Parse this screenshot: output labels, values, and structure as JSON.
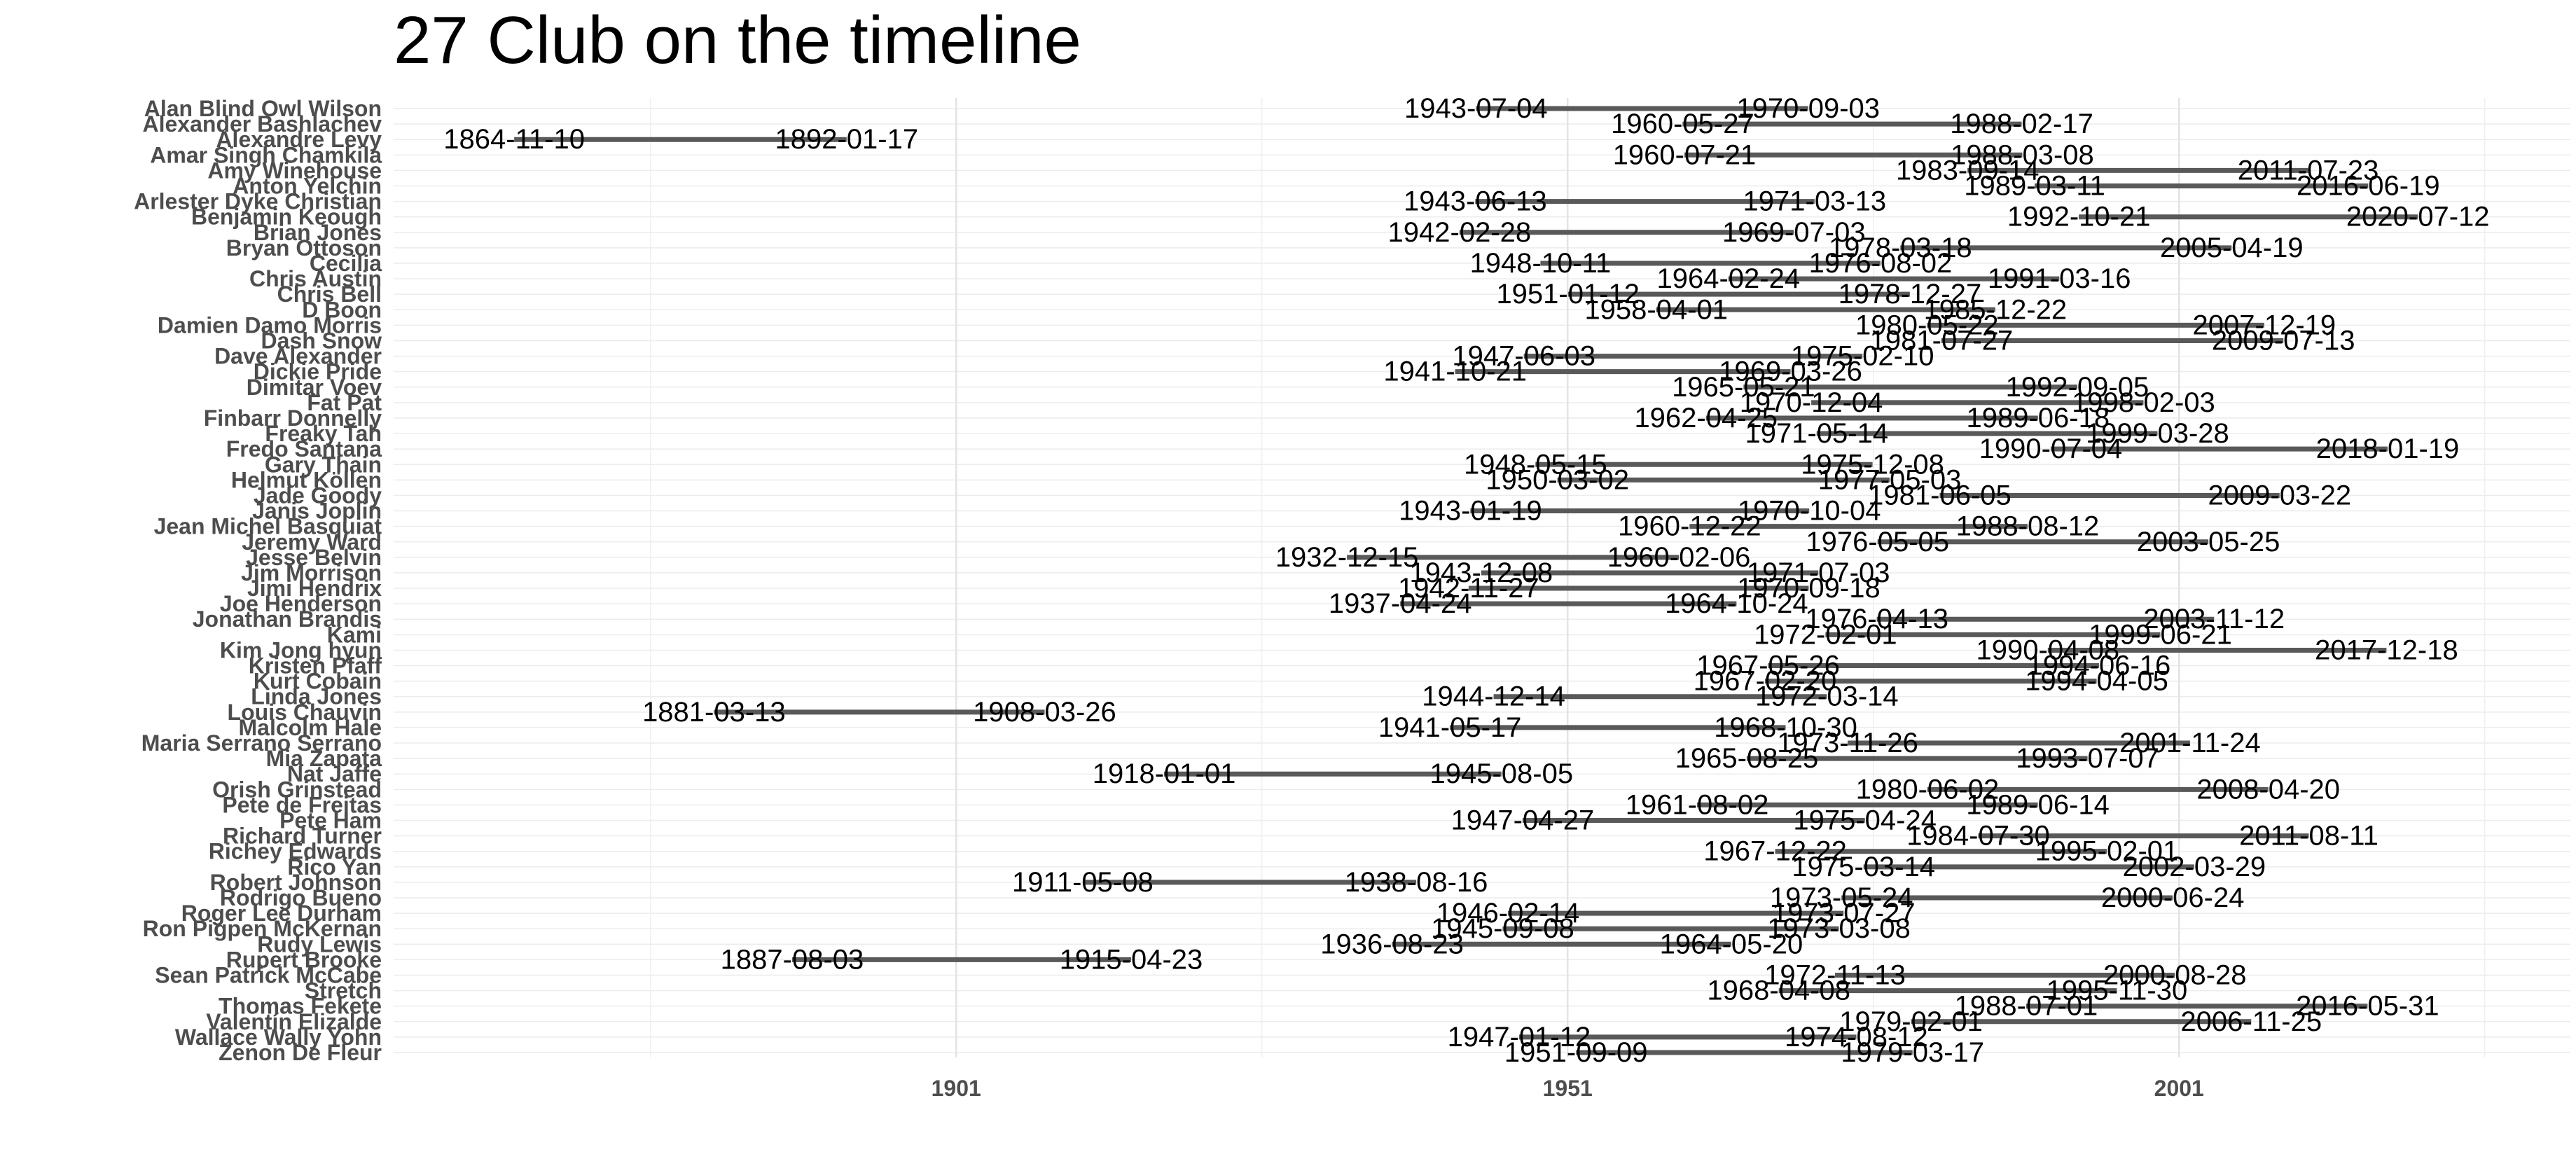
{
  "chart_data": {
    "type": "bar",
    "title": "27 Club on the timeline",
    "xlabel": "",
    "ylabel": "",
    "x_ticks": [
      "1901",
      "1951",
      "2001"
    ],
    "x_tick_values": [
      1901,
      1951,
      2001
    ],
    "xlim": [
      1855,
      2033
    ],
    "grid": true,
    "legend": "none",
    "segment_color": "#595959",
    "rows": [
      {
        "name": "Alan  Blind Owl  Wilson",
        "start": "1943-07-04",
        "end": "1970-09-03"
      },
      {
        "name": "Alexander Bashlachev",
        "start": "1960-05-27",
        "end": "1988-02-17"
      },
      {
        "name": "Alexandre Levy",
        "start": "1864-11-10",
        "end": "1892-01-17"
      },
      {
        "name": "Amar Singh Chamkila",
        "start": "1960-07-21",
        "end": "1988-03-08"
      },
      {
        "name": "Amy Winehouse",
        "start": "1983-09-14",
        "end": "2011-07-23"
      },
      {
        "name": "Anton Yelchin",
        "start": "1989-03-11",
        "end": "2016-06-19"
      },
      {
        "name": "Arlester  Dyke  Christian",
        "start": "1943-06-13",
        "end": "1971-03-13"
      },
      {
        "name": "Benjamin Keough",
        "start": "1992-10-21",
        "end": "2020-07-12"
      },
      {
        "name": "Brian Jones",
        "start": "1942-02-28",
        "end": "1969-07-03"
      },
      {
        "name": "Bryan Ottoson",
        "start": "1978-03-18",
        "end": "2005-04-19"
      },
      {
        "name": "Cecilia",
        "start": "1948-10-11",
        "end": "1976-08-02"
      },
      {
        "name": "Chris Austin",
        "start": "1964-02-24",
        "end": "1991-03-16"
      },
      {
        "name": "Chris Bell",
        "start": "1951-01-12",
        "end": "1978-12-27"
      },
      {
        "name": "D  Boon",
        "start": "1958-04-01",
        "end": "1985-12-22"
      },
      {
        "name": "Damien  Damo  Morris",
        "start": "1980-05-22",
        "end": "2007-12-19"
      },
      {
        "name": "Dash Snow",
        "start": "1981-07-27",
        "end": "2009-07-13"
      },
      {
        "name": "Dave Alexander",
        "start": "1947-06-03",
        "end": "1975-02-10"
      },
      {
        "name": "Dickie Pride",
        "start": "1941-10-21",
        "end": "1969-03-26"
      },
      {
        "name": "Dimitar Voev",
        "start": "1965-05-21",
        "end": "1992-09-05"
      },
      {
        "name": "Fat Pat",
        "start": "1970-12-04",
        "end": "1998-02-03"
      },
      {
        "name": "Finbarr Donnelly",
        "start": "1962-04-25",
        "end": "1989-06-18"
      },
      {
        "name": "Freaky Tah",
        "start": "1971-05-14",
        "end": "1999-03-28"
      },
      {
        "name": "Fredo Santana",
        "start": "1990-07-04",
        "end": "2018-01-19"
      },
      {
        "name": "Gary Thain",
        "start": "1948-05-15",
        "end": "1975-12-08"
      },
      {
        "name": "Helmut Köllen",
        "start": "1950-03-02",
        "end": "1977-05-03"
      },
      {
        "name": "Jade Goody",
        "start": "1981-06-05",
        "end": "2009-03-22"
      },
      {
        "name": "Janis Joplin",
        "start": "1943-01-19",
        "end": "1970-10-04"
      },
      {
        "name": "Jean Michel Basquiat",
        "start": "1960-12-22",
        "end": "1988-08-12"
      },
      {
        "name": "Jeremy Ward",
        "start": "1976-05-05",
        "end": "2003-05-25"
      },
      {
        "name": "Jesse Belvin",
        "start": "1932-12-15",
        "end": "1960-02-06"
      },
      {
        "name": "Jim Morrison",
        "start": "1943-12-08",
        "end": "1971-07-03"
      },
      {
        "name": "Jimi Hendrix",
        "start": "1942-11-27",
        "end": "1970-09-18"
      },
      {
        "name": "Joe Henderson",
        "start": "1937-04-24",
        "end": "1964-10-24"
      },
      {
        "name": "Jonathan Brandis",
        "start": "1976-04-13",
        "end": "2003-11-12"
      },
      {
        "name": "Kami",
        "start": "1972-02-01",
        "end": "1999-06-21"
      },
      {
        "name": "Kim Jong hyun",
        "start": "1990-04-08",
        "end": "2017-12-18"
      },
      {
        "name": "Kristen Pfaff",
        "start": "1967-05-26",
        "end": "1994-06-16"
      },
      {
        "name": "Kurt Cobain",
        "start": "1967-02-20",
        "end": "1994-04-05"
      },
      {
        "name": "Linda Jones",
        "start": "1944-12-14",
        "end": "1972-03-14"
      },
      {
        "name": "Louis Chauvin",
        "start": "1881-03-13",
        "end": "1908-03-26"
      },
      {
        "name": "Malcolm Hale",
        "start": "1941-05-17",
        "end": "1968-10-30"
      },
      {
        "name": "Maria Serrano Serrano",
        "start": "1973-11-26",
        "end": "2001-11-24"
      },
      {
        "name": "Mia Zapata",
        "start": "1965-08-25",
        "end": "1993-07-07"
      },
      {
        "name": "Nat Jaffe",
        "start": "1918-01-01",
        "end": "1945-08-05"
      },
      {
        "name": "Orish Grinstead",
        "start": "1980-06-02",
        "end": "2008-04-20"
      },
      {
        "name": "Pete de Freitas",
        "start": "1961-08-02",
        "end": "1989-06-14"
      },
      {
        "name": "Pete Ham",
        "start": "1947-04-27",
        "end": "1975-04-24"
      },
      {
        "name": "Richard Turner",
        "start": "1984-07-30",
        "end": "2011-08-11"
      },
      {
        "name": "Richey Edwards",
        "start": "1967-12-22",
        "end": "1995-02-01"
      },
      {
        "name": "Rico Yan",
        "start": "1975-03-14",
        "end": "2002-03-29"
      },
      {
        "name": "Robert Johnson",
        "start": "1911-05-08",
        "end": "1938-08-16"
      },
      {
        "name": "Rodrigo Bueno",
        "start": "1973-05-24",
        "end": "2000-06-24"
      },
      {
        "name": "Roger Lee Durham",
        "start": "1946-02-14",
        "end": "1973-07-27"
      },
      {
        "name": "Ron  Pigpen  McKernan",
        "start": "1945-09-08",
        "end": "1973-03-08"
      },
      {
        "name": "Rudy Lewis",
        "start": "1936-08-23",
        "end": "1964-05-20"
      },
      {
        "name": "Rupert Brooke",
        "start": "1887-08-03",
        "end": "1915-04-23"
      },
      {
        "name": "Sean Patrick McCabe",
        "start": "1972-11-13",
        "end": "2000-08-28"
      },
      {
        "name": "Stretch",
        "start": "1968-04-08",
        "end": "1995-11-30"
      },
      {
        "name": "Thomas Fekete",
        "start": "1988-07-01",
        "end": "2016-05-31"
      },
      {
        "name": "Valentín Elizalde",
        "start": "1979-02-01",
        "end": "2006-11-25"
      },
      {
        "name": "Wallace  Wally  Yohn",
        "start": "1947-01-12",
        "end": "1974-08-12"
      },
      {
        "name": "Zenon De Fleur",
        "start": "1951-09-09",
        "end": "1979-03-17"
      }
    ]
  }
}
